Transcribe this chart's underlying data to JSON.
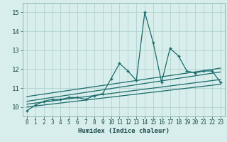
{
  "xlabel": "Humidex (Indice chaleur)",
  "ylabel": "",
  "bg_color": "#d8eeec",
  "line_color": "#1a6b6b",
  "grid_color": "#aacccc",
  "xlim": [
    -0.5,
    23.5
  ],
  "ylim": [
    9.5,
    15.5
  ],
  "yticks": [
    10,
    11,
    12,
    13,
    14,
    15
  ],
  "xticks": [
    0,
    1,
    2,
    3,
    4,
    5,
    6,
    7,
    8,
    9,
    10,
    11,
    12,
    13,
    14,
    15,
    16,
    17,
    18,
    19,
    20,
    21,
    22,
    23
  ],
  "series": [
    [
      0,
      9.8
    ],
    [
      1,
      10.1
    ],
    [
      2,
      10.3
    ],
    [
      3,
      10.4
    ],
    [
      4,
      10.4
    ],
    [
      5,
      10.5
    ],
    [
      6,
      10.5
    ],
    [
      7,
      10.4
    ],
    [
      8,
      10.6
    ],
    [
      9,
      10.7
    ],
    [
      10,
      11.5
    ],
    [
      11,
      12.3
    ],
    [
      12,
      11.9
    ],
    [
      13,
      11.4
    ],
    [
      14,
      15.0
    ],
    [
      15,
      13.4
    ],
    [
      16,
      11.3
    ],
    [
      17,
      13.1
    ],
    [
      18,
      12.7
    ],
    [
      19,
      11.9
    ],
    [
      20,
      11.8
    ],
    [
      21,
      11.9
    ],
    [
      22,
      11.9
    ],
    [
      23,
      11.3
    ]
  ],
  "trend_lines": [
    [
      [
        0,
        10.0
      ],
      [
        23,
        11.2
      ]
    ],
    [
      [
        0,
        10.15
      ],
      [
        23,
        11.45
      ]
    ],
    [
      [
        0,
        10.3
      ],
      [
        23,
        11.85
      ]
    ],
    [
      [
        0,
        10.55
      ],
      [
        23,
        12.05
      ]
    ]
  ]
}
